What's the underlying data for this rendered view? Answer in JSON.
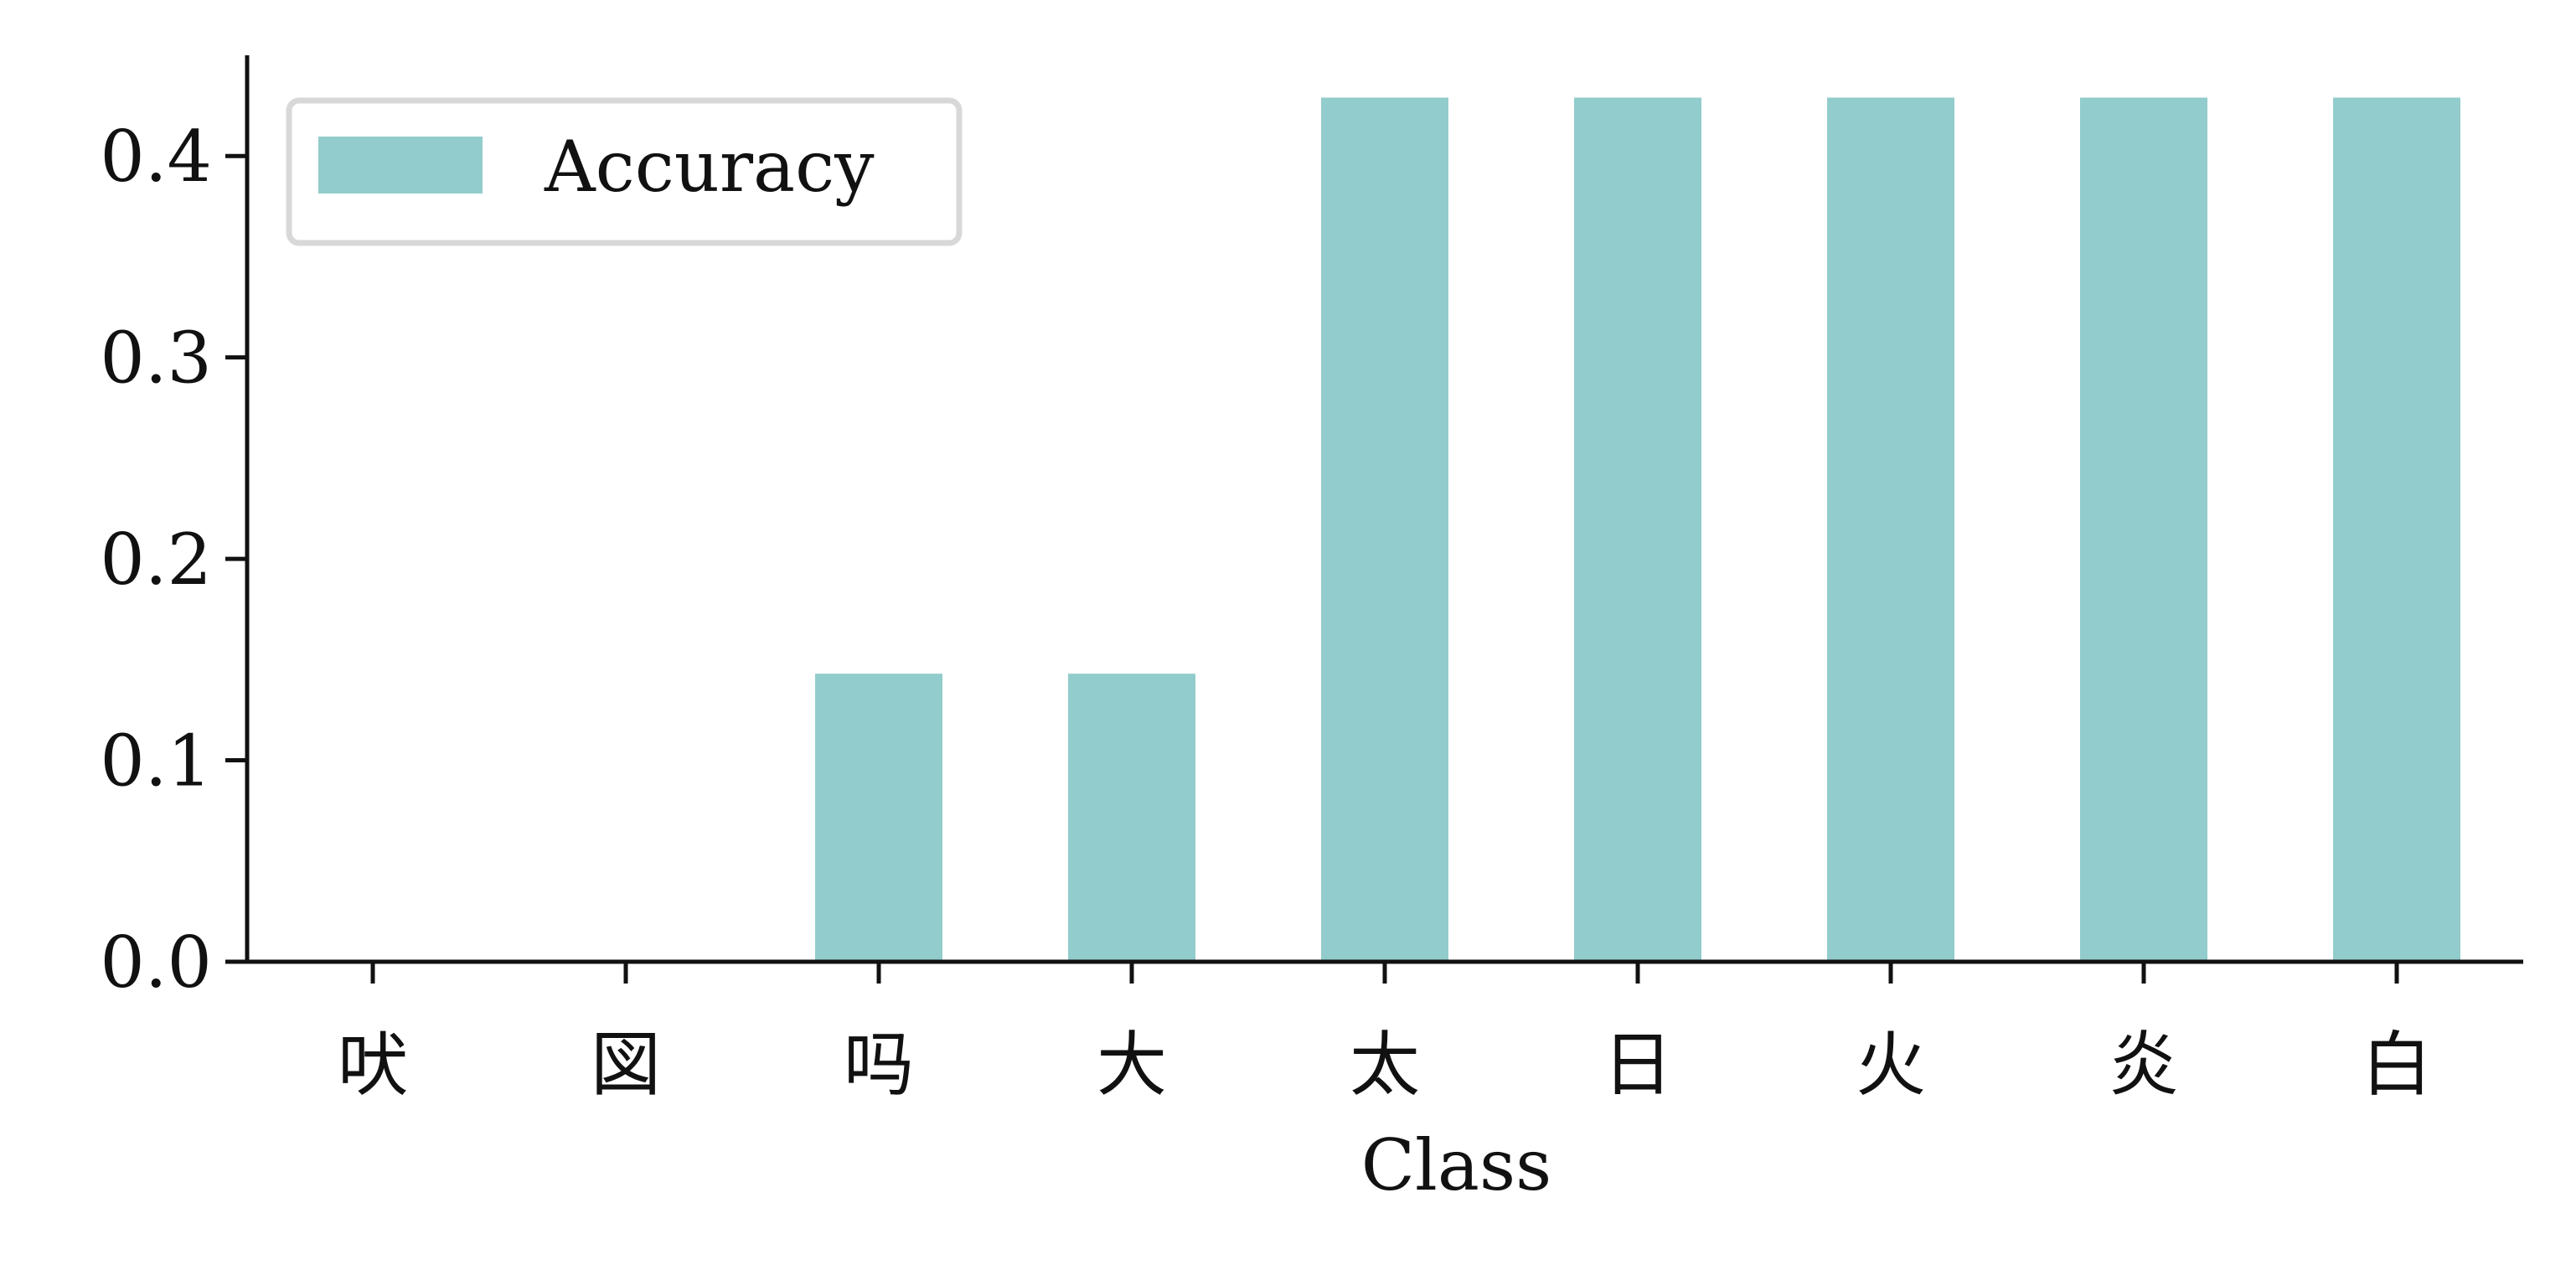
{
  "chart_data": {
    "type": "bar",
    "categories": [
      "吠",
      "図",
      "吗",
      "大",
      "太",
      "日",
      "火",
      "炎",
      "白"
    ],
    "series": [
      {
        "name": "Accuracy",
        "values": [
          0.0,
          0.0,
          0.143,
          0.143,
          0.429,
          0.429,
          0.429,
          0.429,
          0.429
        ]
      }
    ],
    "title": "",
    "xlabel": "Class",
    "ylabel": "",
    "ylim": [
      0,
      0.45
    ],
    "yticks": [
      0.0,
      0.1,
      0.2,
      0.3,
      0.4
    ],
    "ytick_labels": [
      "0.0",
      "0.1",
      "0.2",
      "0.3",
      "0.4"
    ],
    "grid": false,
    "legend": {
      "placement": "top-left",
      "entries": [
        "Accuracy"
      ]
    },
    "colors": {
      "bar": "#92cccc",
      "axis": "#111111",
      "legend_border": "#d8d8d8"
    }
  }
}
